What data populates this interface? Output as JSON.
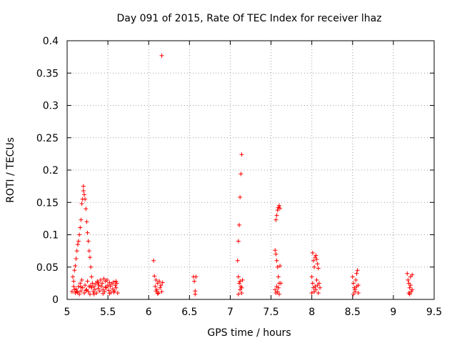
{
  "chart_data": {
    "type": "scatter",
    "title": "Day 091 of 2015, Rate Of TEC Index for receiver lhaz",
    "xlabel": "GPS time / hours",
    "ylabel": "ROTI / TECUs",
    "xlim": [
      5,
      9.5
    ],
    "ylim": [
      0,
      0.4
    ],
    "xticks": [
      "5",
      "5.5",
      "6",
      "6.5",
      "7",
      "7.5",
      "8",
      "8.5",
      "9",
      "9.5"
    ],
    "yticks": [
      "0",
      "0.05",
      "0.1",
      "0.15",
      "0.2",
      "0.25",
      "0.3",
      "0.35",
      "0.4"
    ],
    "grid": true,
    "marker": "+",
    "color": "#ff0000",
    "series": [
      {
        "name": "ROTI",
        "points": [
          [
            5.07,
            0.035
          ],
          [
            5.08,
            0.028
          ],
          [
            5.08,
            0.02
          ],
          [
            5.09,
            0.015
          ],
          [
            5.09,
            0.045
          ],
          [
            5.1,
            0.052
          ],
          [
            5.1,
            0.01
          ],
          [
            5.11,
            0.063
          ],
          [
            5.12,
            0.075
          ],
          [
            5.12,
            0.012
          ],
          [
            5.13,
            0.085
          ],
          [
            5.14,
            0.02
          ],
          [
            5.14,
            0.09
          ],
          [
            5.15,
            0.1
          ],
          [
            5.15,
            0.008
          ],
          [
            5.16,
            0.111
          ],
          [
            5.16,
            0.025
          ],
          [
            5.17,
            0.123
          ],
          [
            5.17,
            0.013
          ],
          [
            5.18,
            0.148
          ],
          [
            5.18,
            0.03
          ],
          [
            5.19,
            0.155
          ],
          [
            5.19,
            0.018
          ],
          [
            5.2,
            0.168
          ],
          [
            5.2,
            0.175
          ],
          [
            5.21,
            0.162
          ],
          [
            5.21,
            0.01
          ],
          [
            5.22,
            0.155
          ],
          [
            5.22,
            0.022
          ],
          [
            5.23,
            0.14
          ],
          [
            5.24,
            0.12
          ],
          [
            5.24,
            0.015
          ],
          [
            5.25,
            0.103
          ],
          [
            5.25,
            0.028
          ],
          [
            5.26,
            0.09
          ],
          [
            5.26,
            0.012
          ],
          [
            5.27,
            0.075
          ],
          [
            5.27,
            0.02
          ],
          [
            5.28,
            0.065
          ],
          [
            5.28,
            0.008
          ],
          [
            5.29,
            0.05
          ],
          [
            5.3,
            0.035
          ],
          [
            5.3,
            0.018
          ],
          [
            5.31,
            0.025
          ],
          [
            5.32,
            0.012
          ],
          [
            5.33,
            0.02
          ],
          [
            5.34,
            0.015
          ],
          [
            5.35,
            0.024
          ],
          [
            5.36,
            0.01
          ],
          [
            5.37,
            0.028
          ],
          [
            5.38,
            0.017
          ],
          [
            5.39,
            0.022
          ],
          [
            5.4,
            0.013
          ],
          [
            5.41,
            0.03
          ],
          [
            5.42,
            0.02
          ],
          [
            5.43,
            0.025
          ],
          [
            5.44,
            0.015
          ],
          [
            5.45,
            0.032
          ],
          [
            5.46,
            0.012
          ],
          [
            5.47,
            0.028
          ],
          [
            5.48,
            0.018
          ],
          [
            5.49,
            0.03
          ],
          [
            5.5,
            0.022
          ],
          [
            5.51,
            0.014
          ],
          [
            5.52,
            0.026
          ],
          [
            5.53,
            0.02
          ],
          [
            5.54,
            0.011
          ],
          [
            5.55,
            0.024
          ],
          [
            5.56,
            0.016
          ],
          [
            5.57,
            0.027
          ],
          [
            5.58,
            0.013
          ],
          [
            5.59,
            0.022
          ],
          [
            5.6,
            0.018
          ],
          [
            5.61,
            0.025
          ],
          [
            5.62,
            0.01
          ],
          [
            5.06,
            0.012
          ],
          [
            5.11,
            0.016
          ],
          [
            5.13,
            0.011
          ],
          [
            5.17,
            0.019
          ],
          [
            5.23,
            0.014
          ],
          [
            5.29,
            0.021
          ],
          [
            5.33,
            0.008
          ],
          [
            5.38,
            0.026
          ],
          [
            5.44,
            0.009
          ],
          [
            5.47,
            0.019
          ],
          [
            5.52,
            0.009
          ],
          [
            5.57,
            0.011
          ],
          [
            5.6,
            0.028
          ],
          [
            6.06,
            0.06
          ],
          [
            6.07,
            0.036
          ],
          [
            6.08,
            0.02
          ],
          [
            6.09,
            0.03
          ],
          [
            6.1,
            0.015
          ],
          [
            6.11,
            0.025
          ],
          [
            6.12,
            0.01
          ],
          [
            6.13,
            0.028
          ],
          [
            6.14,
            0.018
          ],
          [
            6.15,
            0.022
          ],
          [
            6.16,
            0.012
          ],
          [
            6.17,
            0.026
          ],
          [
            6.16,
            0.377
          ],
          [
            6.11,
            0.009
          ],
          [
            6.09,
            0.013
          ],
          [
            6.55,
            0.035
          ],
          [
            6.56,
            0.028
          ],
          [
            6.57,
            0.013
          ],
          [
            6.58,
            0.035
          ],
          [
            6.57,
            0.008
          ],
          [
            7.09,
            0.06
          ],
          [
            7.1,
            0.09
          ],
          [
            7.11,
            0.115
          ],
          [
            7.12,
            0.158
          ],
          [
            7.13,
            0.194
          ],
          [
            7.14,
            0.224
          ],
          [
            7.1,
            0.035
          ],
          [
            7.11,
            0.025
          ],
          [
            7.12,
            0.015
          ],
          [
            7.13,
            0.02
          ],
          [
            7.14,
            0.01
          ],
          [
            7.15,
            0.03
          ],
          [
            7.1,
            0.008
          ],
          [
            7.12,
            0.028
          ],
          [
            7.14,
            0.018
          ],
          [
            7.55,
            0.076
          ],
          [
            7.56,
            0.07
          ],
          [
            7.57,
            0.06
          ],
          [
            7.56,
            0.123
          ],
          [
            7.57,
            0.13
          ],
          [
            7.58,
            0.138
          ],
          [
            7.59,
            0.142
          ],
          [
            7.6,
            0.145
          ],
          [
            7.61,
            0.141
          ],
          [
            7.58,
            0.05
          ],
          [
            7.59,
            0.035
          ],
          [
            7.6,
            0.025
          ],
          [
            7.61,
            0.052
          ],
          [
            7.55,
            0.015
          ],
          [
            7.56,
            0.01
          ],
          [
            7.57,
            0.02
          ],
          [
            7.58,
            0.012
          ],
          [
            7.59,
            0.018
          ],
          [
            7.6,
            0.008
          ],
          [
            7.62,
            0.025
          ],
          [
            8.01,
            0.072
          ],
          [
            8.02,
            0.06
          ],
          [
            8.03,
            0.05
          ],
          [
            8.04,
            0.065
          ],
          [
            8.05,
            0.068
          ],
          [
            8.06,
            0.062
          ],
          [
            8.07,
            0.055
          ],
          [
            8.08,
            0.048
          ],
          [
            8.0,
            0.035
          ],
          [
            8.01,
            0.025
          ],
          [
            8.02,
            0.018
          ],
          [
            8.03,
            0.012
          ],
          [
            8.04,
            0.02
          ],
          [
            8.05,
            0.015
          ],
          [
            8.06,
            0.03
          ],
          [
            8.07,
            0.022
          ],
          [
            8.08,
            0.01
          ],
          [
            8.09,
            0.025
          ],
          [
            8.1,
            0.018
          ],
          [
            8.0,
            0.01
          ],
          [
            8.5,
            0.035
          ],
          [
            8.51,
            0.025
          ],
          [
            8.52,
            0.018
          ],
          [
            8.53,
            0.012
          ],
          [
            8.54,
            0.03
          ],
          [
            8.55,
            0.04
          ],
          [
            8.56,
            0.045
          ],
          [
            8.57,
            0.022
          ],
          [
            8.51,
            0.008
          ],
          [
            8.53,
            0.015
          ],
          [
            8.55,
            0.02
          ],
          [
            8.57,
            0.01
          ],
          [
            9.17,
            0.04
          ],
          [
            9.18,
            0.03
          ],
          [
            9.19,
            0.025
          ],
          [
            9.2,
            0.018
          ],
          [
            9.21,
            0.035
          ],
          [
            9.22,
            0.012
          ],
          [
            9.23,
            0.038
          ],
          [
            9.19,
            0.01
          ],
          [
            9.21,
            0.022
          ],
          [
            9.23,
            0.015
          ],
          [
            9.2,
            0.008
          ]
        ]
      }
    ]
  }
}
